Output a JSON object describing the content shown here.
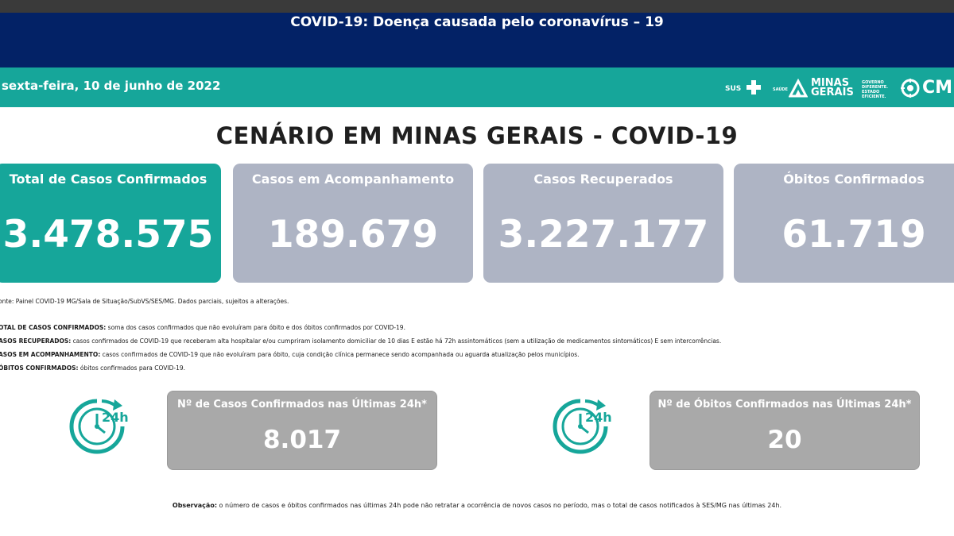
{
  "header": {
    "title": "COVID-19: Doença causada pelo coronavírus – 19"
  },
  "datebar": {
    "date": "sexta-feira, 10 de junho de 2022"
  },
  "logos": {
    "sus": "SUS",
    "saude": "SAÚDE",
    "mg_line1": "MINAS",
    "mg_line2": "GERAIS",
    "gov_line1": "GOVERNO",
    "gov_line2": "DIFERENTE.",
    "gov_line3": "ESTADO",
    "gov_line4": "EFICIENTE.",
    "cm": "CM",
    "brand_color": "#ffffff"
  },
  "title": "CENÁRIO EM MINAS GERAIS - COVID-19",
  "cards": [
    {
      "label": "Total de Casos Confirmados",
      "value": "3.478.575",
      "color": "#16a69a"
    },
    {
      "label": "Casos em Acompanhamento",
      "value": "189.679",
      "color": "#aeb4c4"
    },
    {
      "label": "Casos Recuperados",
      "value": "3.227.177",
      "color": "#aeb4c4"
    },
    {
      "label": "Óbitos Confirmados",
      "value": "61.719",
      "color": "#aeb4c4"
    }
  ],
  "notes": {
    "source": "onte: Painel COVID-19 MG/Sala de Situação/SubVS/SES/MG. Dados parciais, sujeitos a alterações.",
    "def1_term": "OTAL DE  CASOS CONFIRMADOS:",
    "def1_text": " soma dos casos confirmados que não evoluíram para óbito e dos óbitos confirmados por COVID-19.",
    "def2_term": "ASOS RECUPERADOS:",
    "def2_text": " casos confirmados de COVID-19 que receberam alta hospitalar e/ou cumpriram isolamento domiciliar de 10 dias E estão há 72h assintomáticos (sem a utilização de medicamentos sintomáticos) E sem intercorrências.",
    "def3_term": "ASOS EM ACOMPANHAMENTO:",
    "def3_text": " casos confirmados de COVID-19 que não evoluíram para óbito, cuja condição clínica permanece sendo acompanhada ou aguarda atualização pelos municípios.",
    "def4_term": "ÓBITOS CONFIRMADOS:",
    "def4_text": " óbitos confirmados para COVID-19."
  },
  "last24": {
    "cases_label": "Nº de Casos Confirmados nas Últimas 24h*",
    "cases_value": "8.017",
    "deaths_label": "Nº de Óbitos Confirmados nas Últimas 24h*",
    "deaths_value": "20",
    "clock_text": "24h",
    "icon": "clock-24h-icon",
    "icon_color": "#16a69a"
  },
  "observation": {
    "term": "Observação:",
    "text": " o número de casos e óbitos confirmados nas últimas 24h pode não retratar a ocorrência de novos casos no período, mas o total de casos notificados à SES/MG nas últimas 24h."
  }
}
